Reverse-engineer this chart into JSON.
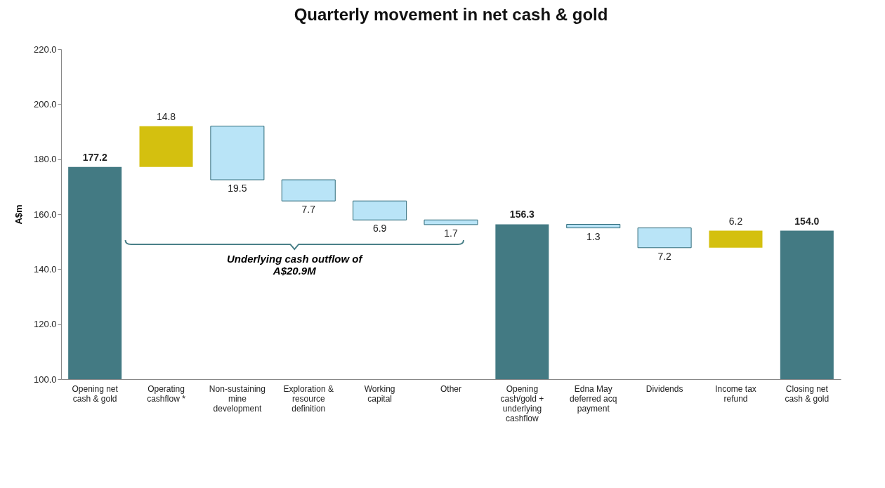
{
  "chart_data": {
    "type": "bar",
    "title": "Quarterly movement in net cash & gold",
    "ylabel": "A$m",
    "categories": [
      "Opening net cash & gold",
      "Operating cashflow *",
      "Non-sustaining mine development",
      "Exploration & resource definition",
      "Working capital",
      "Other",
      "Opening cash/gold + underlying cashflow",
      "Edna May deferred acq payment",
      "Dividends",
      "Income tax refund",
      "Closing net cash & gold"
    ],
    "values": [
      177.2,
      14.8,
      -19.5,
      -7.7,
      -6.9,
      -1.7,
      156.3,
      -1.3,
      -7.2,
      6.2,
      154.0
    ],
    "base": [
      null,
      177.2,
      192.0,
      172.5,
      164.8,
      157.9,
      null,
      156.3,
      155.0,
      147.8,
      null
    ],
    "value_labels": [
      "177.2",
      "14.8",
      "19.5",
      "7.7",
      "6.9",
      "1.7",
      "156.3",
      "1.3",
      "7.2",
      "6.2",
      "154.0"
    ],
    "colors": [
      "#437a83",
      "#d4c00f",
      "#b9e4f7",
      "#b9e4f7",
      "#b9e4f7",
      "#b9e4f7",
      "#437a83",
      "#b9e4f7",
      "#b9e4f7",
      "#d4c00f",
      "#437a83"
    ],
    "ylim": [
      100,
      220
    ],
    "yticks": [
      {
        "value": 100,
        "label": "100.0"
      },
      {
        "value": 120,
        "label": "120.0"
      },
      {
        "value": 140,
        "label": "140.0"
      },
      {
        "value": 160,
        "label": "160.0"
      },
      {
        "value": 180,
        "label": "180.0"
      },
      {
        "value": 200,
        "label": "200.0"
      },
      {
        "value": 220,
        "label": "220.0"
      }
    ],
    "grid": false,
    "annotations": [
      "Underlying cash outflow of A$20.9M"
    ]
  }
}
